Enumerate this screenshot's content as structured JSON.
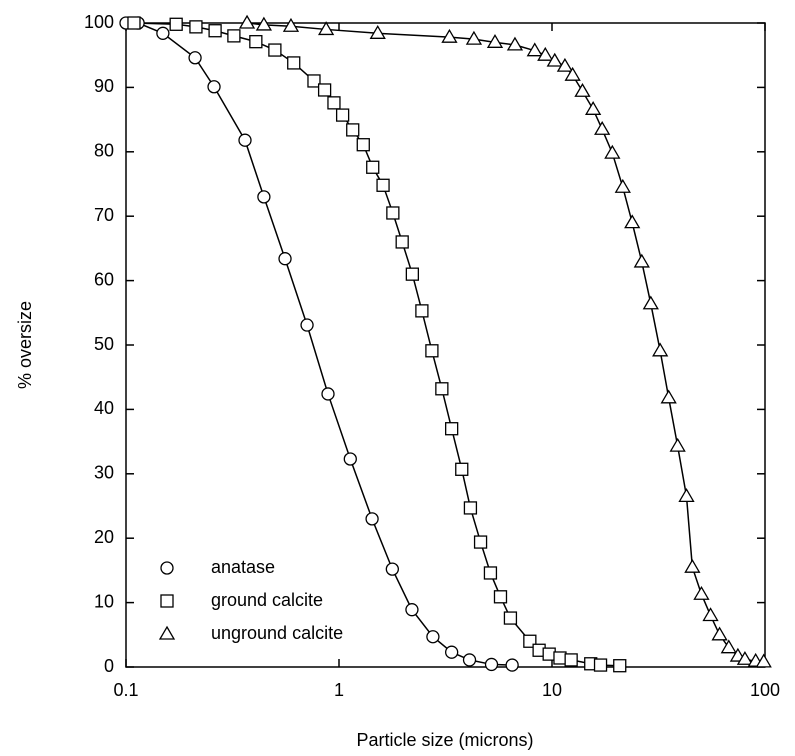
{
  "chart_data": {
    "type": "line",
    "x_label": "Particle size (microns)",
    "y_label": "% oversize",
    "x_scale": "log",
    "xlim": [
      0.1,
      100
    ],
    "xticks": [
      0.1,
      1,
      10,
      100
    ],
    "ylim": [
      0,
      100
    ],
    "yticks": [
      0,
      10,
      20,
      30,
      40,
      50,
      60,
      70,
      80,
      90,
      100
    ],
    "legend_position": "lower left",
    "series": [
      {
        "name": "anatase",
        "color": "#000000",
        "marker": "circle",
        "x": [
          0.1,
          0.114,
          0.149,
          0.211,
          0.259,
          0.362,
          0.444,
          0.558,
          0.708,
          0.888,
          1.13,
          1.43,
          1.78,
          2.2,
          2.76,
          3.38,
          4.1,
          5.2,
          6.5
        ],
        "values": [
          100,
          100,
          98.4,
          94.6,
          90.1,
          81.8,
          73.0,
          63.4,
          53.1,
          42.4,
          32.3,
          23.0,
          15.2,
          8.9,
          4.7,
          2.3,
          1.1,
          0.4,
          0.3
        ]
      },
      {
        "name": "ground calcite",
        "color": "#000000",
        "marker": "square",
        "x": [
          0.109,
          0.172,
          0.213,
          0.262,
          0.321,
          0.407,
          0.5,
          0.613,
          0.763,
          0.856,
          0.947,
          1.04,
          1.16,
          1.3,
          1.44,
          1.61,
          1.79,
          1.98,
          2.21,
          2.45,
          2.73,
          3.04,
          3.38,
          3.77,
          4.14,
          4.62,
          5.14,
          5.73,
          6.38,
          7.87,
          8.7,
          9.7,
          10.9,
          12.3,
          15.2,
          16.9,
          20.8
        ],
        "values": [
          100,
          99.8,
          99.4,
          98.8,
          98.0,
          97.1,
          95.8,
          93.8,
          91.0,
          89.6,
          87.6,
          85.7,
          83.4,
          81.1,
          77.6,
          74.8,
          70.5,
          66.0,
          61.0,
          55.3,
          49.1,
          43.2,
          37.0,
          30.7,
          24.7,
          19.4,
          14.6,
          10.9,
          7.6,
          4.0,
          2.6,
          2.0,
          1.4,
          1.1,
          0.5,
          0.3,
          0.2
        ]
      },
      {
        "name": "unground calcite",
        "color": "#000000",
        "marker": "triangle",
        "x": [
          0.37,
          0.444,
          0.595,
          0.87,
          1.52,
          3.3,
          4.3,
          5.4,
          6.7,
          8.3,
          9.3,
          10.3,
          11.5,
          12.5,
          13.9,
          15.6,
          17.2,
          19.2,
          21.5,
          23.8,
          26.4,
          29.1,
          32.2,
          35.3,
          38.9,
          42.8,
          45.6,
          50.3,
          55.5,
          61.2,
          67.6,
          74.6,
          80.5,
          90.4,
          98.6
        ],
        "values": [
          100,
          99.7,
          99.5,
          99.0,
          98.4,
          97.8,
          97.5,
          97.0,
          96.6,
          95.7,
          95.0,
          94.1,
          93.3,
          91.9,
          89.4,
          86.6,
          83.5,
          79.8,
          74.5,
          69.0,
          62.9,
          56.4,
          49.1,
          41.8,
          34.3,
          26.5,
          15.5,
          11.3,
          8.0,
          5.0,
          3.0,
          1.7,
          1.2,
          0.9,
          0.8
        ]
      }
    ]
  }
}
